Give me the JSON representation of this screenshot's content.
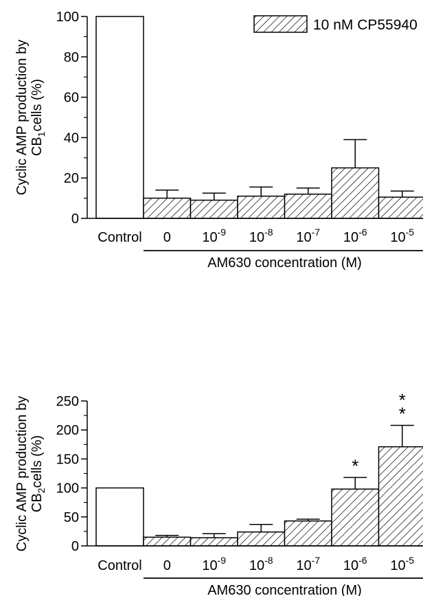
{
  "legend": {
    "label": "10 nM CP55940",
    "position": "top-right"
  },
  "chart_data": [
    {
      "type": "bar",
      "ylabel_line1": "Cyclic AMP production by",
      "ylabel_line2_prefix": "CB",
      "ylabel_line2_sub": "1",
      "ylabel_line2_suffix": "cells (%)",
      "xlabel": "AM630 concentration (M)",
      "control_label": "Control",
      "ylim": [
        0,
        100
      ],
      "yticks": [
        0,
        20,
        40,
        60,
        80,
        100
      ],
      "categories": [
        {
          "base": "0",
          "exp": ""
        },
        {
          "base": "10",
          "exp": "-9"
        },
        {
          "base": "10",
          "exp": "-8"
        },
        {
          "base": "10",
          "exp": "-7"
        },
        {
          "base": "10",
          "exp": "-6"
        },
        {
          "base": "10",
          "exp": "-5"
        }
      ],
      "control_value": 100,
      "values": [
        10,
        9,
        11,
        12,
        25,
        10.5
      ],
      "errors": [
        4,
        3.5,
        4.5,
        3,
        14,
        3
      ],
      "annotations": [
        "",
        "",
        "",
        "",
        "",
        ""
      ]
    },
    {
      "type": "bar",
      "ylabel_line1": "Cyclic AMP production by",
      "ylabel_line2_prefix": "CB",
      "ylabel_line2_sub": "2",
      "ylabel_line2_suffix": "cells (%)",
      "xlabel": "AM630 concentration (M)",
      "control_label": "Control",
      "ylim": [
        0,
        250
      ],
      "yticks": [
        0,
        50,
        100,
        150,
        200,
        250
      ],
      "categories": [
        {
          "base": "0",
          "exp": ""
        },
        {
          "base": "10",
          "exp": "-9"
        },
        {
          "base": "10",
          "exp": "-8"
        },
        {
          "base": "10",
          "exp": "-7"
        },
        {
          "base": "10",
          "exp": "-6"
        },
        {
          "base": "10",
          "exp": "-5"
        }
      ],
      "control_value": 100,
      "values": [
        15,
        14,
        24,
        43,
        98,
        171
      ],
      "errors": [
        3,
        7,
        13,
        3,
        20,
        37
      ],
      "annotations": [
        "",
        "",
        "",
        "",
        "*",
        "**"
      ]
    }
  ]
}
